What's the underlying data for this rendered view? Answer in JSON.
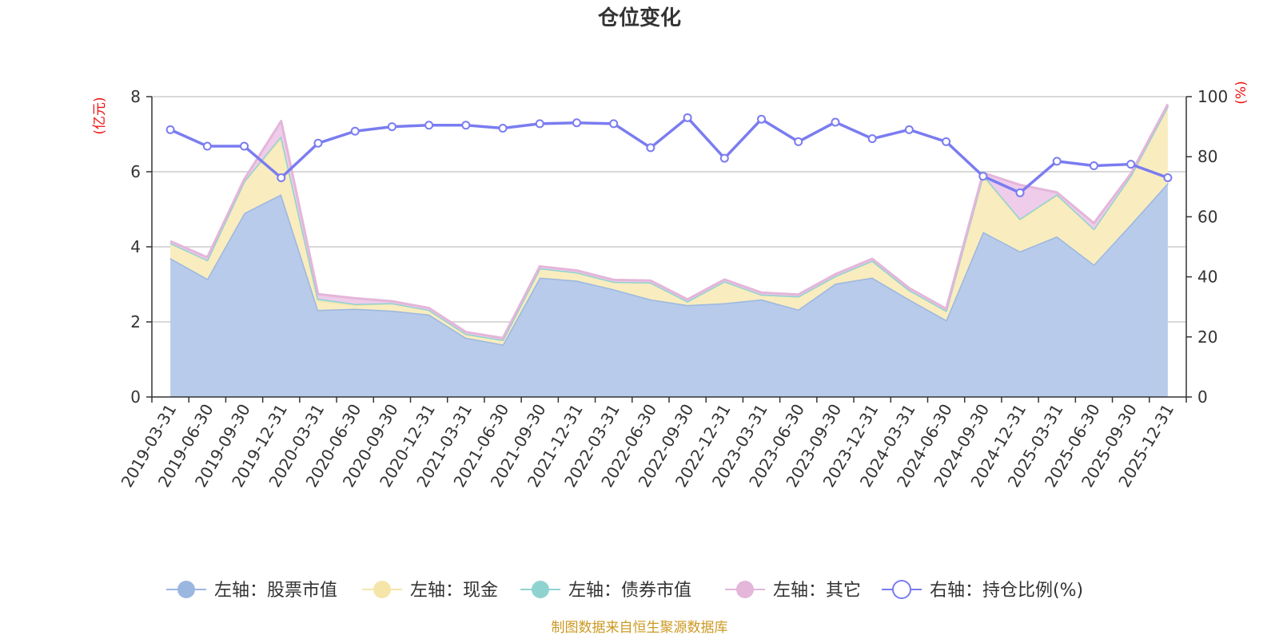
{
  "chart_data": {
    "type": "area",
    "title": "仓位变化",
    "left_axis_unit": "(亿元)",
    "right_axis_unit": "(%)",
    "left_ylim": [
      0,
      8
    ],
    "left_ticks": [
      "0",
      "2",
      "4",
      "6",
      "8"
    ],
    "right_ylim": [
      0,
      100
    ],
    "right_ticks": [
      "0",
      "20",
      "40",
      "60",
      "80",
      "100"
    ],
    "grid": true,
    "legend_position": "bottom",
    "categories": [
      "2019-03-31",
      "2019-06-30",
      "2019-09-30",
      "2019-12-31",
      "2020-03-31",
      "2020-06-30",
      "2020-09-30",
      "2020-12-31",
      "2021-03-31",
      "2021-06-30",
      "2021-09-30",
      "2021-12-31",
      "2022-03-31",
      "2022-06-30",
      "2022-09-30",
      "2022-12-31",
      "2023-03-31",
      "2023-06-30",
      "2023-09-30",
      "2023-12-31",
      "2024-03-31",
      "2024-06-30",
      "2024-09-30",
      "2024-12-31",
      "2025-03-31",
      "2025-06-30",
      "2025-09-30",
      "2025-12-31"
    ],
    "series": [
      {
        "name": "左轴：股票市值",
        "axis": "left",
        "kind": "area",
        "color": "#9bb7e0",
        "fill": "#b8cbea",
        "values": [
          3.7,
          3.15,
          4.9,
          5.4,
          2.32,
          2.35,
          2.3,
          2.2,
          1.58,
          1.4,
          3.18,
          3.1,
          2.87,
          2.6,
          2.45,
          2.5,
          2.6,
          2.33,
          3.02,
          3.18,
          2.6,
          2.05,
          4.4,
          3.88,
          4.28,
          3.53,
          4.6,
          5.7
        ]
      },
      {
        "name": "左轴：现金",
        "axis": "left",
        "kind": "area",
        "color": "#f5e5a8",
        "fill": "#f9ecbf",
        "values": [
          0.4,
          0.5,
          0.85,
          1.5,
          0.25,
          0.1,
          0.2,
          0.12,
          0.1,
          0.12,
          0.25,
          0.22,
          0.2,
          0.45,
          0.1,
          0.58,
          0.13,
          0.35,
          0.2,
          0.45,
          0.25,
          0.25,
          1.5,
          0.85,
          1.1,
          0.95,
          1.3,
          2.05
        ]
      },
      {
        "name": "左轴：债券市值",
        "axis": "left",
        "kind": "area",
        "color": "#8fd3d0",
        "fill": "#bfe6e3",
        "values": [
          0,
          0,
          0,
          0.05,
          0.05,
          0.03,
          0,
          0,
          0,
          0,
          0,
          0,
          0,
          0,
          0,
          0,
          0,
          0,
          0,
          0,
          0,
          0,
          0.02,
          0.02,
          0.02,
          0,
          0,
          0
        ]
      },
      {
        "name": "左轴：其它",
        "axis": "left",
        "kind": "area",
        "color": "#e4b6d9",
        "fill": "#eeccea",
        "values": [
          0.05,
          0.07,
          0.05,
          0.4,
          0.12,
          0.15,
          0.05,
          0.05,
          0.05,
          0.05,
          0.05,
          0.05,
          0.05,
          0.05,
          0.05,
          0.05,
          0.05,
          0.05,
          0.05,
          0.05,
          0.05,
          0.05,
          0.05,
          0.9,
          0.05,
          0.15,
          0.05,
          0.05
        ]
      },
      {
        "name": "右轴：持仓比例(%)",
        "axis": "right",
        "kind": "line",
        "color": "#7a7cf0",
        "values": [
          89,
          83.5,
          83.5,
          73,
          84.5,
          88.5,
          90,
          90.5,
          90.5,
          89.5,
          91,
          91.3,
          91,
          83,
          93,
          79.5,
          92.5,
          85,
          91.5,
          86,
          89,
          85,
          73.5,
          68,
          78.5,
          77,
          77.5,
          73
        ]
      }
    ]
  },
  "footer": "制图数据来自恒生聚源数据库"
}
